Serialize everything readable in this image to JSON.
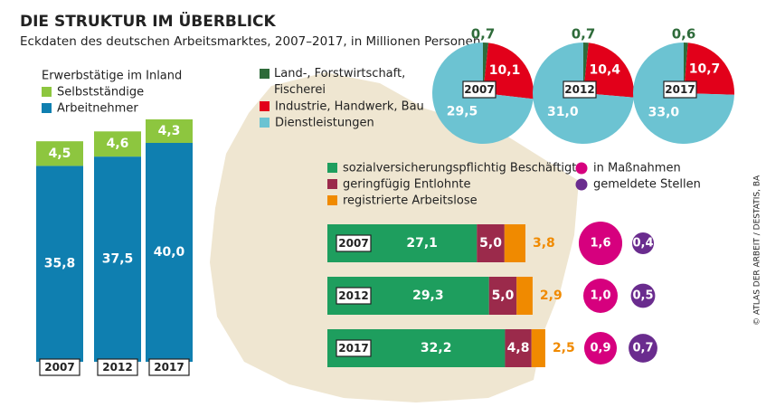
{
  "header": {
    "title": "DIE STRUKTUR IM ÜBERBLICK",
    "subtitle": "Eckdaten des deutschen Arbeitsmarktes, 2007–2017, in Millionen Personen",
    "source": "© ATLAS DER ARBEIT / DESTATIS, BA"
  },
  "chart_data": [
    {
      "type": "stacked-bar",
      "legend_title": "Erwerbstätige im Inland",
      "categories": [
        "2007",
        "2012",
        "2017"
      ],
      "series": [
        {
          "name": "Arbeitnehmer",
          "color": "#0f7fb0",
          "values": [
            35.8,
            37.5,
            40.0
          ],
          "value_labels": [
            "35,8",
            "37,5",
            "40,0"
          ]
        },
        {
          "name": "Selbstständige",
          "color": "#8dc63f",
          "values": [
            4.5,
            4.6,
            4.3
          ],
          "value_labels": [
            "4,5",
            "4,6",
            "4,3"
          ]
        }
      ]
    },
    {
      "type": "pie",
      "categories": [
        "2007",
        "2012",
        "2017"
      ],
      "series": [
        {
          "name": "Land-, Forstwirtschaft, Fischerei",
          "color": "#2e6b3a",
          "values": [
            0.7,
            0.7,
            0.6
          ],
          "value_labels": [
            "0,7",
            "0,7",
            "0,6"
          ]
        },
        {
          "name": "Industrie, Handwerk, Bau",
          "color": "#e2001a",
          "values": [
            10.1,
            10.4,
            10.7
          ],
          "value_labels": [
            "10,1",
            "10,4",
            "10,7"
          ]
        },
        {
          "name": "Dienstleistungen",
          "color": "#6cc3d2",
          "values": [
            29.5,
            31.0,
            33.0
          ],
          "value_labels": [
            "29,5",
            "31,0",
            "33,0"
          ]
        }
      ]
    },
    {
      "type": "hbar-stacked",
      "categories": [
        "2007",
        "2012",
        "2017"
      ],
      "series": [
        {
          "name": "sozialversicherungspflichtig Beschäftigte",
          "color": "#1e9e5e",
          "values": [
            27.1,
            29.3,
            32.2
          ],
          "value_labels": [
            "27,1",
            "29,3",
            "32,2"
          ]
        },
        {
          "name": "geringfügig Entlohnte",
          "color": "#9b2a4b",
          "values": [
            5.0,
            5.0,
            4.8
          ],
          "value_labels": [
            "5,0",
            "5,0",
            "4,8"
          ]
        },
        {
          "name": "registrierte Arbeitslose",
          "color": "#f08a00",
          "values": [
            3.8,
            2.9,
            2.5
          ],
          "value_labels": [
            "3,8",
            "2,9",
            "2,5"
          ]
        }
      ]
    },
    {
      "type": "bubble",
      "categories": [
        "2007",
        "2012",
        "2017"
      ],
      "series": [
        {
          "name": "in Maßnahmen",
          "color": "#d6007e",
          "values": [
            1.6,
            1.0,
            0.9
          ],
          "value_labels": [
            "1,6",
            "1,0",
            "0,9"
          ]
        },
        {
          "name": "gemeldete Stellen",
          "color": "#6a2c8e",
          "values": [
            0.4,
            0.5,
            0.7
          ],
          "value_labels": [
            "0,4",
            "0,5",
            "0,7"
          ]
        }
      ]
    }
  ]
}
